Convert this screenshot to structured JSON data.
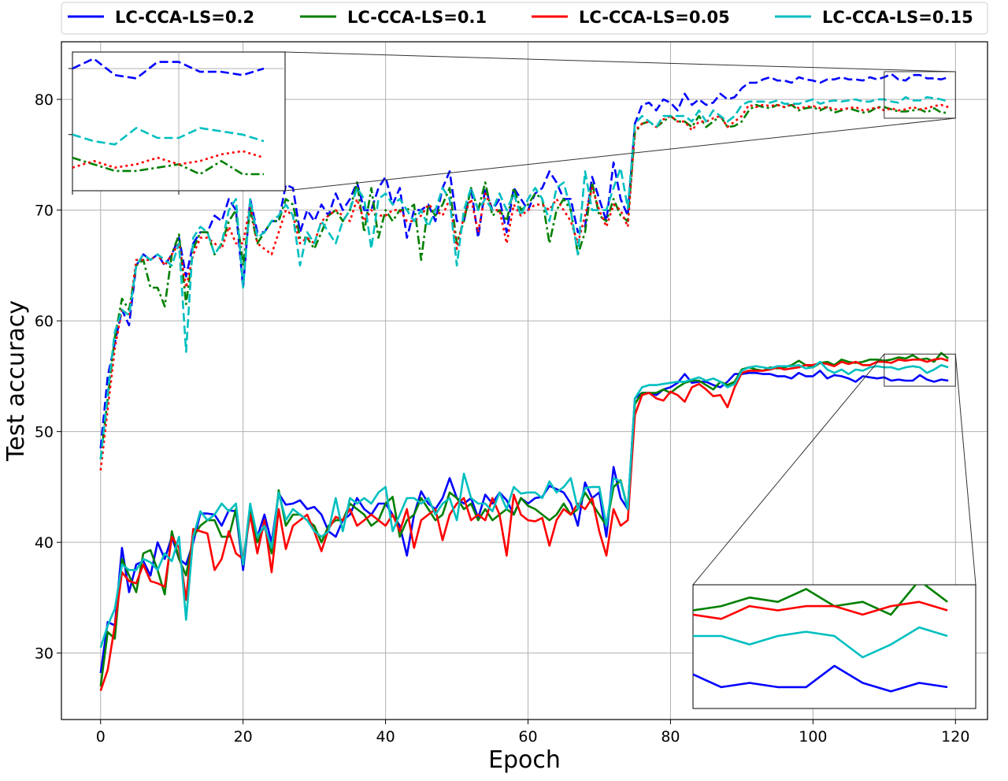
{
  "chart_data": {
    "type": "line",
    "title": "",
    "xlabel": "Epoch",
    "ylabel": "Test accuracy",
    "xlim": [
      -5.5,
      124.5
    ],
    "ylim": [
      24,
      85.2
    ],
    "xticks": [
      0,
      20,
      40,
      60,
      80,
      100,
      120
    ],
    "yticks": [
      30,
      40,
      50,
      60,
      70,
      80
    ],
    "xtick_labels": [
      "0",
      "20",
      "40",
      "60",
      "80",
      "100",
      "120"
    ],
    "ytick_labels": [
      "30",
      "40",
      "50",
      "60",
      "70",
      "80"
    ],
    "grid": true,
    "legend_position": "top-outside",
    "legend": [
      {
        "label": "LC-CCA-LS=0.2",
        "color": "#0000ff"
      },
      {
        "label": "LC-CCA-LS=0.1",
        "color": "#008000"
      },
      {
        "label": "LC-CCA-LS=0.05",
        "color": "#ff0000"
      },
      {
        "label": "LC-CCA-LS=0.15",
        "color": "#00bfbf"
      }
    ],
    "x": [
      0,
      1,
      2,
      3,
      4,
      5,
      6,
      7,
      8,
      9,
      10,
      11,
      12,
      13,
      14,
      15,
      16,
      17,
      18,
      19,
      20,
      21,
      22,
      23,
      24,
      25,
      26,
      27,
      28,
      29,
      30,
      31,
      32,
      33,
      34,
      35,
      36,
      37,
      38,
      39,
      40,
      41,
      42,
      43,
      44,
      45,
      46,
      47,
      48,
      49,
      50,
      51,
      52,
      53,
      54,
      55,
      56,
      57,
      58,
      59,
      60,
      61,
      62,
      63,
      64,
      65,
      66,
      67,
      68,
      69,
      70,
      71,
      72,
      73,
      74,
      75,
      76,
      77,
      78,
      79,
      80,
      81,
      82,
      83,
      84,
      85,
      86,
      87,
      88,
      89,
      90,
      91,
      92,
      93,
      94,
      95,
      96,
      97,
      98,
      99,
      100,
      101,
      102,
      103,
      104,
      105,
      106,
      107,
      108,
      109,
      110,
      111,
      112,
      113,
      114,
      115,
      116,
      117,
      118,
      119
    ],
    "series": [
      {
        "label": "LC-CCA-LS=0.2",
        "group": "upper",
        "color": "#0000ff",
        "dash": "dashed",
        "values": [
          48.5,
          55,
          58,
          61,
          59.6,
          65,
          66,
          65.5,
          66,
          65,
          66,
          67.5,
          64,
          67,
          68,
          68,
          69.5,
          69,
          71,
          70,
          63,
          71,
          68,
          68,
          69,
          69,
          72.3,
          72,
          68,
          70,
          69,
          70.5,
          69.5,
          71.5,
          70,
          71,
          72.5,
          70,
          70,
          72,
          73,
          70.5,
          72,
          67.5,
          70,
          70,
          70.5,
          69,
          72,
          73.5,
          69,
          69,
          72,
          67.5,
          72,
          70,
          71,
          68,
          72,
          71,
          70,
          71.5,
          72,
          73.5,
          72.5,
          71,
          71,
          68,
          68.5,
          73,
          71,
          69,
          74.3,
          71,
          69.5,
          77.8,
          79.5,
          79.7,
          79,
          80,
          79.7,
          79,
          80.5,
          79.5,
          80,
          79.5,
          79.7,
          80.5,
          80,
          80.2,
          81,
          81.5,
          81.5,
          81.8,
          82,
          81.7,
          81.7,
          81.5,
          82,
          81.8,
          81.7,
          81.5,
          81.8,
          81.8,
          82,
          81.8,
          81.8,
          81.7,
          82,
          81.8,
          82,
          82.3,
          81.8,
          81.7,
          82.2,
          82.2,
          81.9,
          81.9,
          81.8,
          82
        ]
      },
      {
        "label": "LC-CCA-LS=0.1",
        "group": "upper",
        "color": "#008000",
        "dash": "dashdot",
        "values": [
          47.5,
          53,
          58.5,
          62,
          61,
          65,
          65.5,
          63,
          63,
          61.3,
          66,
          67.8,
          61.5,
          66.5,
          68,
          68,
          66,
          67,
          69,
          70,
          65,
          70,
          67,
          68,
          69,
          69,
          71,
          70.5,
          67.5,
          67.5,
          66.5,
          68,
          69.5,
          70,
          69,
          70,
          72.5,
          68,
          72,
          67.5,
          70,
          69,
          70,
          70,
          70.5,
          65.5,
          70.5,
          69.5,
          70.5,
          72,
          67,
          69,
          72,
          70,
          72.5,
          69.5,
          70,
          69,
          72,
          70,
          70.5,
          71.5,
          71,
          67,
          70,
          71,
          70,
          66,
          68,
          72.5,
          69.5,
          69,
          71,
          69.5,
          69,
          77,
          77.8,
          78,
          77.5,
          78,
          78.5,
          78,
          78,
          77.5,
          78.5,
          77.5,
          78,
          78.5,
          77.5,
          77.6,
          78,
          79,
          79.5,
          79.3,
          79.2,
          79.5,
          79.3,
          79.5,
          79,
          79.2,
          79.3,
          79,
          79.3,
          78.8,
          79,
          79.2,
          79,
          78.8,
          78.9,
          79.3,
          79.3,
          79.1,
          78.9,
          78.9,
          79,
          79.1,
          78.8,
          79.2,
          78.8,
          78.8
        ]
      },
      {
        "label": "LC-CCA-LS=0.05",
        "group": "upper",
        "color": "#ff0000",
        "dash": "dotted",
        "values": [
          46.5,
          52,
          57.5,
          61,
          60.5,
          65.5,
          65.5,
          65.5,
          66,
          65,
          66,
          67,
          63,
          66,
          67.5,
          67.5,
          67,
          66.5,
          68.5,
          67,
          67,
          70.5,
          67,
          66.5,
          66,
          68,
          70,
          69.5,
          67,
          67.5,
          67,
          69,
          69.5,
          70,
          69.5,
          69,
          71,
          69,
          70,
          69.5,
          69.5,
          70,
          70,
          69,
          69,
          69.5,
          70.5,
          70,
          69.5,
          71,
          66.5,
          69.5,
          71,
          68,
          71.5,
          70,
          70,
          67,
          70.5,
          69.5,
          70,
          70.5,
          70.5,
          70,
          71,
          70,
          69,
          67,
          69.5,
          72,
          70,
          68.5,
          70.5,
          70,
          68.5,
          77.2,
          77.8,
          78,
          77.5,
          78.2,
          78.5,
          78,
          78,
          77.2,
          78,
          78,
          78.3,
          78.5,
          77.5,
          78,
          78.5,
          79.5,
          79.3,
          79.5,
          79.4,
          79.5,
          79.3,
          79.6,
          79.2,
          79.3,
          79.4,
          79.2,
          79.3,
          79.1,
          79.1,
          79.2,
          79.3,
          79,
          79.1,
          79.3,
          79,
          79.2,
          79,
          79.1,
          79.3,
          79.1,
          79.2,
          79.4,
          79.5,
          79.3
        ]
      },
      {
        "label": "LC-CCA-LS=0.15",
        "group": "upper",
        "color": "#00bfbf",
        "dash": "dashed",
        "values": [
          47.5,
          53.5,
          59,
          61,
          60.5,
          65,
          66,
          65.5,
          66,
          65.5,
          65,
          67,
          57.2,
          67.5,
          68.5,
          68,
          66,
          67,
          70,
          71,
          63,
          71,
          67.5,
          68,
          69,
          69.5,
          70.5,
          69.5,
          65,
          68,
          67,
          69,
          68,
          67,
          69,
          70,
          72,
          71,
          66.5,
          71,
          71.5,
          70.5,
          71,
          70,
          69,
          70,
          68.5,
          70,
          72,
          71,
          65,
          70,
          72,
          70,
          71,
          70,
          71.5,
          70,
          71.5,
          69.5,
          71,
          72,
          71,
          69,
          72,
          72.5,
          70,
          66,
          73.5,
          70,
          70,
          70,
          72,
          73.8,
          70.2,
          77.8,
          78.5,
          78,
          77.5,
          78.5,
          78.5,
          78.5,
          78.5,
          78,
          79,
          78,
          79,
          78.5,
          78,
          78.5,
          79.5,
          79.8,
          79.8,
          79.8,
          79.7,
          79.9,
          79.6,
          79.6,
          79.6,
          79.8,
          80,
          79.6,
          79.8,
          79.9,
          79.8,
          79.9,
          80,
          79.8,
          79.8,
          80,
          80,
          79.8,
          79.7,
          80.2,
          79.9,
          79.9,
          80.2,
          80.1,
          80,
          79.8
        ]
      },
      {
        "label": "LC-CCA-LS=0.2",
        "group": "lower",
        "color": "#0000ff",
        "dash": "solid",
        "values": [
          28.2,
          32.8,
          32.5,
          39.5,
          35.5,
          38,
          38.3,
          37,
          40,
          38.5,
          40.5,
          38.5,
          38,
          40,
          42.6,
          42.6,
          42.5,
          41.5,
          42.9,
          42.8,
          37.5,
          43.2,
          40.5,
          42.5,
          40,
          44.4,
          43.4,
          43.5,
          43.8,
          43,
          43.2,
          42.5,
          41,
          40.5,
          42,
          42.5,
          44,
          43,
          42.5,
          43.5,
          43.5,
          42.5,
          41.5,
          38.8,
          42.5,
          44.6,
          43.5,
          43,
          44,
          45.8,
          44,
          43.5,
          44,
          42.2,
          44.3,
          43.5,
          44.5,
          43.8,
          42.5,
          44,
          43.5,
          44,
          44.1,
          45.1,
          44.8,
          44.5,
          43.5,
          41.5,
          45.4,
          44,
          44.5,
          40.5,
          46.8,
          44,
          43,
          53,
          53.5,
          53.5,
          53.3,
          53.8,
          54,
          54.4,
          55.2,
          54.4,
          54.5,
          54.5,
          54.2,
          54,
          54.5,
          55.2,
          55.2,
          55.3,
          55.3,
          55.2,
          55.2,
          55,
          55,
          54.8,
          55.3,
          55,
          55,
          55.5,
          54.8,
          55.1,
          55,
          54.8,
          54.5,
          55,
          54.9,
          54.8,
          54.9,
          54.6,
          54.7,
          54.6,
          54.6,
          55.1,
          54.7,
          54.5,
          54.7,
          54.6
        ]
      },
      {
        "label": "LC-CCA-LS=0.1",
        "group": "lower",
        "color": "#008000",
        "dash": "solid",
        "values": [
          27,
          31.9,
          31.3,
          38.5,
          37,
          35.5,
          39,
          39.3,
          37.5,
          35.3,
          41,
          38.5,
          37,
          40.5,
          41.5,
          42,
          42,
          40.5,
          40.5,
          43,
          38,
          43,
          40,
          41.5,
          39,
          44.7,
          41.5,
          42.5,
          42.5,
          42,
          41.5,
          40,
          41.5,
          42,
          42,
          43.5,
          43,
          42.5,
          41.5,
          42,
          43.5,
          44.1,
          40.5,
          42,
          42.5,
          44,
          43,
          42,
          42.5,
          44.5,
          44,
          43,
          43.5,
          42,
          43,
          42,
          42.5,
          43,
          42.5,
          44,
          43.3,
          43,
          42.5,
          42,
          42.5,
          43.5,
          42.5,
          43,
          44.5,
          43.5,
          42.5,
          41.5,
          45,
          45.6,
          43,
          52.5,
          53.5,
          53.5,
          53.5,
          53.8,
          53.5,
          54,
          54.4,
          54.6,
          54.6,
          54.2,
          53.8,
          54.5,
          54.2,
          54.5,
          55.6,
          55.8,
          55.6,
          55.5,
          55.8,
          55.7,
          55.8,
          56,
          56.4,
          56,
          55.8,
          56.2,
          56.3,
          56,
          56.5,
          56.3,
          56.2,
          56.3,
          56.5,
          56.5,
          56.4,
          56.5,
          56.7,
          56.6,
          56.9,
          56.5,
          56.6,
          56.3,
          57.1,
          56.6
        ]
      },
      {
        "label": "LC-CCA-LS=0.05",
        "group": "lower",
        "color": "#ff0000",
        "dash": "solid",
        "values": [
          26.6,
          28.5,
          32.5,
          37.3,
          36.5,
          36.3,
          38,
          36.5,
          36.3,
          36,
          40.5,
          39.5,
          34.8,
          41.2,
          41,
          40.8,
          37.5,
          38.5,
          41,
          39,
          38.5,
          42.5,
          39,
          42,
          37.3,
          43,
          39.4,
          41.5,
          42,
          42.5,
          41,
          39.2,
          41.2,
          42.3,
          42,
          43,
          41.5,
          42,
          42.5,
          42,
          41.5,
          42.5,
          41,
          43,
          39.5,
          42,
          42.5,
          43,
          40.2,
          42.5,
          43.5,
          44,
          42,
          42.5,
          42,
          44,
          42.5,
          38.8,
          44.3,
          42.5,
          42,
          41.9,
          42.2,
          39.7,
          42,
          43,
          42.5,
          43.5,
          43,
          44,
          41,
          38.8,
          43,
          41.5,
          42,
          51.5,
          53.3,
          53.5,
          53,
          52.8,
          53.6,
          53.3,
          52.7,
          54,
          54.3,
          53.8,
          53.2,
          53.3,
          52.2,
          54,
          55.3,
          55.5,
          55.5,
          55.5,
          55.6,
          55.8,
          55.6,
          55.7,
          55.8,
          56,
          56,
          56.2,
          56.1,
          55.9,
          56.3,
          56.1,
          56.3,
          56,
          56,
          56.3,
          56.3,
          56.2,
          56.5,
          56.4,
          56.5,
          56.5,
          56.3,
          56.5,
          56.6,
          56.4
        ]
      },
      {
        "label": "LC-CCA-LS=0.15",
        "group": "lower",
        "color": "#00bfbf",
        "dash": "solid",
        "values": [
          30.5,
          32.5,
          34,
          38,
          37.5,
          37.5,
          38.5,
          38.2,
          37.5,
          39,
          38.3,
          40.5,
          33,
          40.5,
          42.8,
          42,
          42.5,
          43.5,
          42.8,
          43.5,
          38,
          43.5,
          40.5,
          41.5,
          39.5,
          44.5,
          42,
          43,
          42.5,
          42,
          41,
          40.5,
          41,
          44,
          41,
          44,
          43.5,
          44,
          43.5,
          44.5,
          45,
          41,
          42.5,
          44,
          44,
          43.5,
          44,
          42.5,
          43.5,
          44,
          42,
          46.2,
          44,
          43.5,
          43.5,
          42.8,
          44.5,
          43,
          45,
          44.4,
          44.5,
          44.5,
          44,
          45.5,
          44.5,
          45,
          45.8,
          43,
          44.9,
          45,
          45,
          41.5,
          45.8,
          45.5,
          43,
          53,
          54,
          54.2,
          54.2,
          54.3,
          54.4,
          54.5,
          54.5,
          54.7,
          54.9,
          54.6,
          54.8,
          54.5,
          54,
          54.3,
          55.5,
          55.8,
          55.9,
          55.8,
          55.7,
          55.9,
          55.9,
          55.9,
          56,
          55.7,
          55.8,
          56.3,
          55.6,
          55.3,
          55.6,
          55.2,
          55.6,
          55.5,
          55.8,
          55.9,
          55.8,
          55.8,
          55.6,
          55.8,
          55.9,
          55.8,
          55.3,
          55.6,
          56,
          55.8
        ]
      }
    ],
    "insets": [
      {
        "target": "upper",
        "xrange": [
          110,
          120
        ],
        "yrange": [
          78.3,
          82.5
        ],
        "placement": "top-left"
      },
      {
        "target": "lower",
        "xrange": [
          110,
          120
        ],
        "yrange": [
          54.1,
          57
        ],
        "placement": "bottom-right"
      }
    ]
  }
}
